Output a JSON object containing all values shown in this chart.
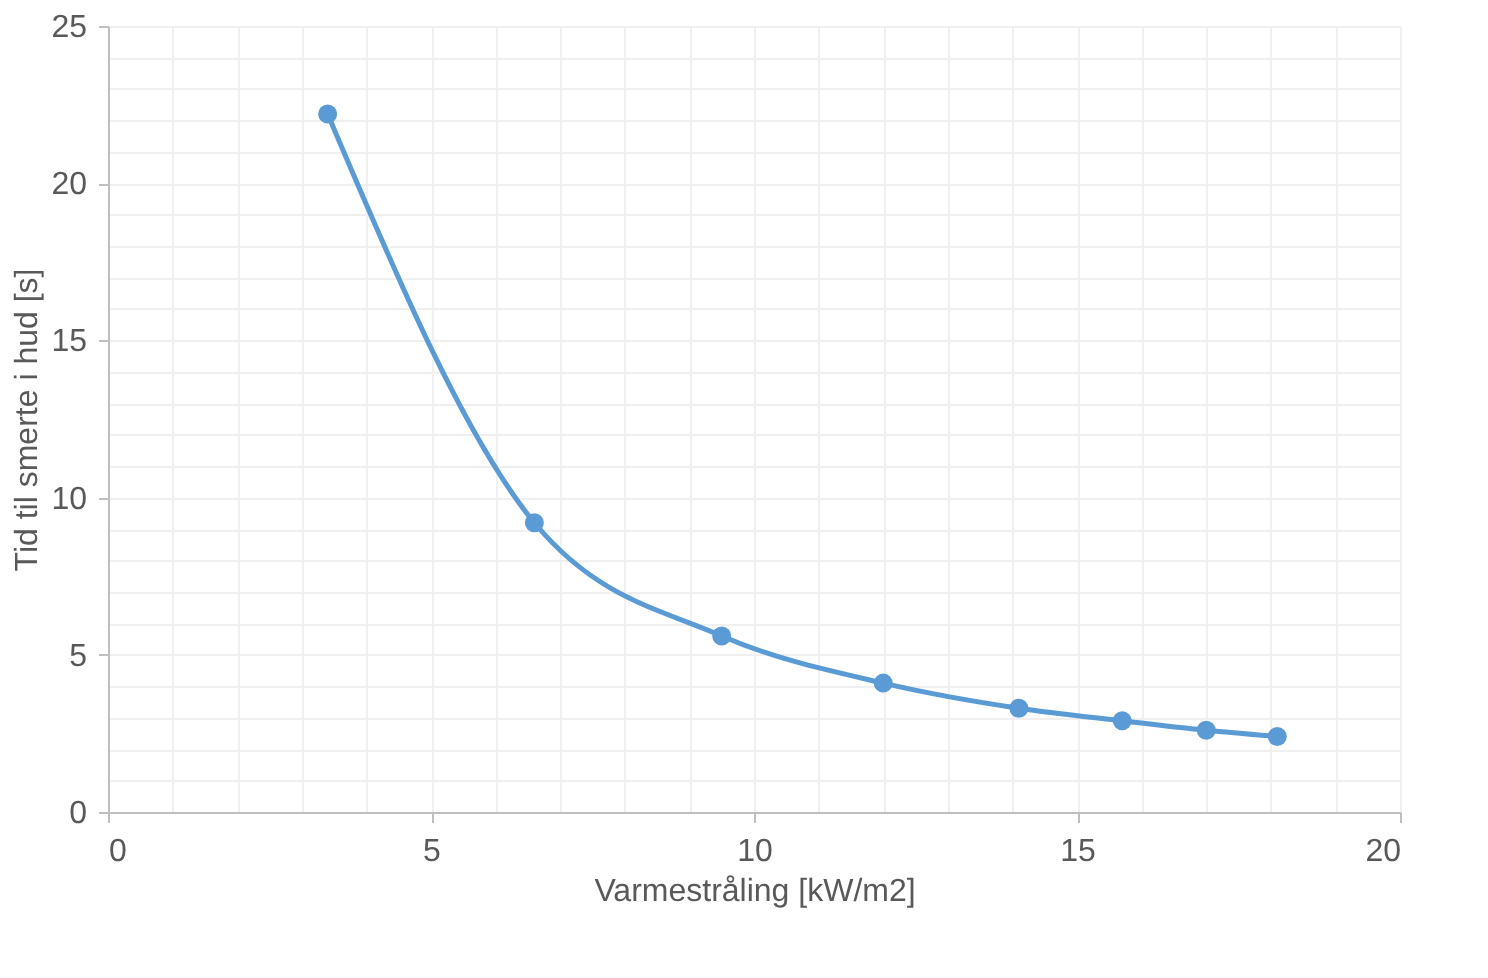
{
  "chart_data": {
    "type": "line",
    "xlabel": "Varmestråling [kW/m2]",
    "ylabel": "Tid til smerte i hud [s]",
    "x": [
      3.4,
      6.6,
      9.5,
      12.0,
      14.1,
      15.7,
      17.0,
      18.1
    ],
    "series": [
      {
        "color": "#5b9bd5",
        "values": [
          22.2,
          9.2,
          5.6,
          4.1,
          3.3,
          2.9,
          2.6,
          2.4
        ]
      }
    ],
    "xlim": [
      0,
      20
    ],
    "xticks": [
      0,
      5,
      10,
      15,
      20
    ],
    "ylim": [
      0,
      25
    ],
    "yticks": [
      0,
      5,
      10,
      15,
      20,
      25
    ],
    "grid": true,
    "marker": "circle",
    "line_style": "solid",
    "legend": false
  }
}
